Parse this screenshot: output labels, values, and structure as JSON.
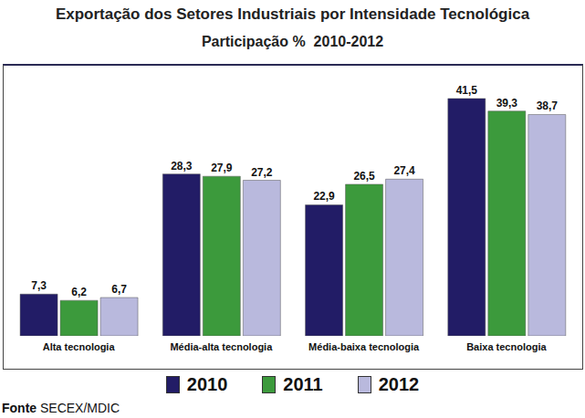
{
  "chart_data": {
    "type": "bar",
    "title": "Exportação dos Setores Industriais por Intensidade Tecnológica",
    "subtitle": "Participação %  2010-2012",
    "source": "Fonte SECEX/MDIC",
    "categories": [
      "Alta tecnologia",
      "Média-alta tecnologia",
      "Média-baixa tecnologia",
      "Baixa tecnologia"
    ],
    "series": [
      {
        "name": "2010",
        "color": "#221c66",
        "values": [
          7.3,
          28.3,
          22.9,
          41.5
        ],
        "value_labels": [
          "7,3",
          "28,3",
          "22,9",
          "41,5"
        ]
      },
      {
        "name": "2011",
        "color": "#3c9a3c",
        "values": [
          6.2,
          27.9,
          26.5,
          39.3
        ],
        "value_labels": [
          "6,2",
          "27,9",
          "26,5",
          "39,3"
        ]
      },
      {
        "name": "2012",
        "color": "#b9b9dd",
        "values": [
          6.7,
          27.2,
          27.4,
          38.7
        ],
        "value_labels": [
          "6,7",
          "27,2",
          "27,4",
          "38,7"
        ]
      }
    ],
    "ylim": [
      0,
      45
    ],
    "yticks": [
      0,
      45
    ],
    "grid": false,
    "data_labels": true,
    "tick_labels": "x",
    "legend": "bottom"
  }
}
